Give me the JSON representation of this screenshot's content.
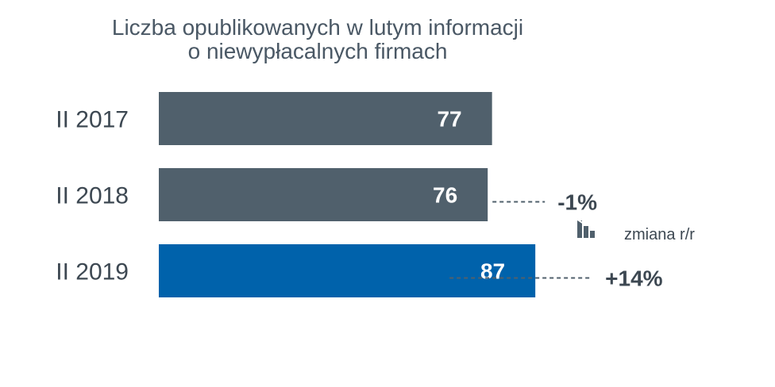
{
  "chart_data": {
    "type": "bar",
    "orientation": "horizontal",
    "title_lines": [
      "Liczba opublikowanych w lutym informacji",
      "o niewypłacalnych firmach"
    ],
    "categories": [
      "II 2017",
      "II 2018",
      "II 2019"
    ],
    "values": [
      77,
      76,
      87
    ],
    "bar_colors": [
      "#50606c",
      "#50606c",
      "#0062ab"
    ],
    "changes": [
      "",
      "-1%",
      "+14%"
    ],
    "legend": {
      "icon": "chart-decline-icon",
      "label": "zmiana r/r"
    },
    "xlim": [
      0,
      100
    ],
    "grid": false
  }
}
